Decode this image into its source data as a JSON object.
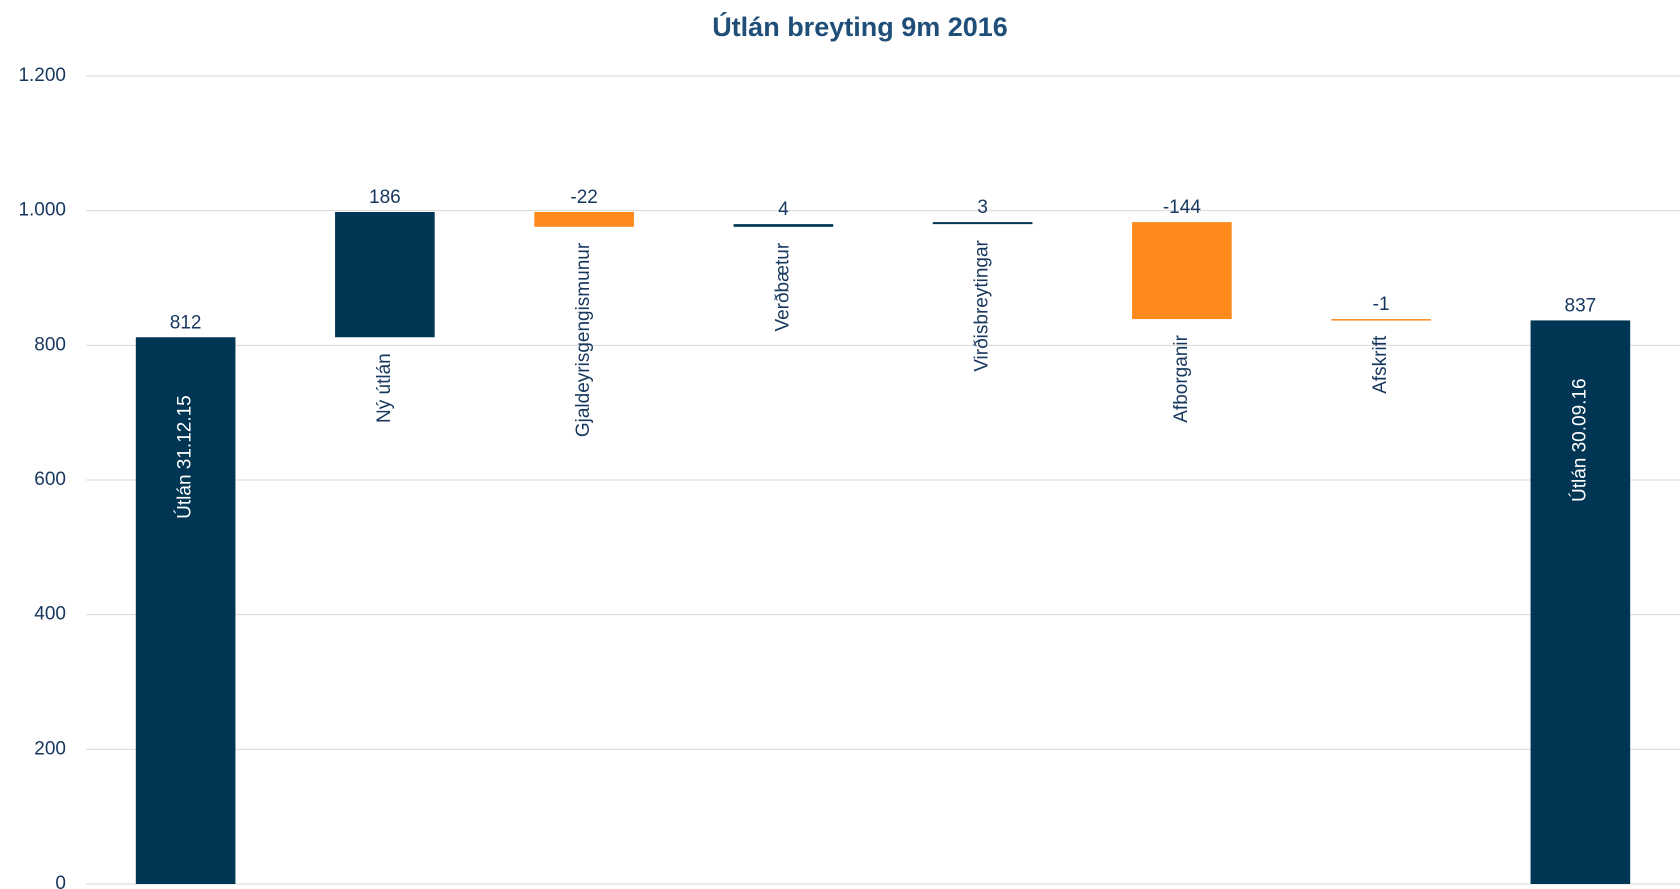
{
  "chart_data": {
    "type": "waterfall",
    "title": "Útlán breyting 9m 2016",
    "categories": [
      "Útlán 31.12.15",
      "Ný útlán",
      "Gjaldeyrisgengismunur",
      "Verðbætur",
      "Virðisbreytingar",
      "Afborganir",
      "Afskrift",
      "Útlán 30.09.16"
    ],
    "values": [
      812,
      186,
      -22,
      4,
      3,
      -144,
      -1,
      837
    ],
    "totals": [
      true,
      false,
      false,
      false,
      false,
      false,
      false,
      true
    ],
    "total_color": "#003653",
    "increase_color": "#003653",
    "decrease_color": "#ff8a1c",
    "ylim": [
      0,
      1200
    ],
    "yticks": [
      0,
      200,
      400,
      600,
      800,
      {
        "value": 1000,
        "label": "1.000"
      },
      {
        "value": 1200,
        "label": "1.200"
      }
    ],
    "grid": true
  }
}
